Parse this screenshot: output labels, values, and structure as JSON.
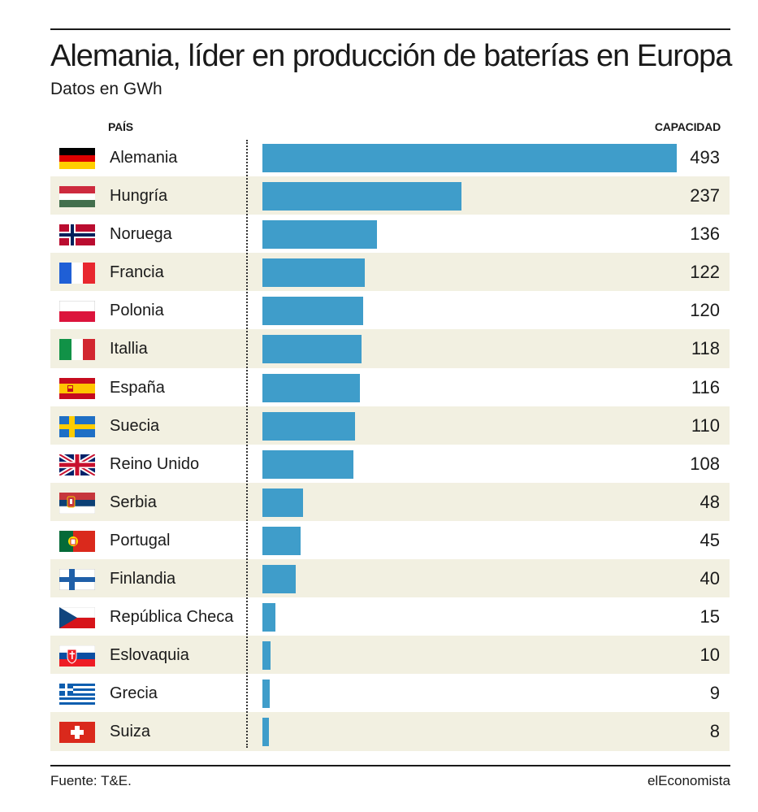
{
  "header": {
    "title": "Alemania, líder en producción de baterías en Europa",
    "subtitle": "Datos en GWh",
    "col_country": "PAÍS",
    "col_capacity": "CAPACIDAD"
  },
  "footer": {
    "source": "Fuente: T&E.",
    "brand": "elEconomista"
  },
  "colors": {
    "bar": "#3f9dca",
    "row_shade": "#f2f0e1"
  },
  "chart_data": {
    "type": "bar",
    "orientation": "horizontal",
    "title": "Alemania, líder en producción de baterías en Europa",
    "subtitle": "Datos en GWh",
    "xlabel": "CAPACIDAD",
    "ylabel": "PAÍS",
    "categories": [
      "Alemania",
      "Hungría",
      "Noruega",
      "Francia",
      "Polonia",
      "Itallia",
      "España",
      "Suecia",
      "Reino Unido",
      "Serbia",
      "Portugal",
      "Finlandia",
      "República Checa",
      "Eslovaquia",
      "Grecia",
      "Suiza"
    ],
    "values": [
      493,
      237,
      136,
      122,
      120,
      118,
      116,
      110,
      108,
      48,
      45,
      40,
      15,
      10,
      9,
      8
    ],
    "flags": [
      "germany-flag-icon",
      "hungary-flag-icon",
      "norway-flag-icon",
      "france-flag-icon",
      "poland-flag-icon",
      "italy-flag-icon",
      "spain-flag-icon",
      "sweden-flag-icon",
      "uk-flag-icon",
      "serbia-flag-icon",
      "portugal-flag-icon",
      "finland-flag-icon",
      "czech-flag-icon",
      "slovakia-flag-icon",
      "greece-flag-icon",
      "switzerland-flag-icon"
    ],
    "xlim": [
      0,
      493
    ],
    "grid": false,
    "legend": "none"
  }
}
